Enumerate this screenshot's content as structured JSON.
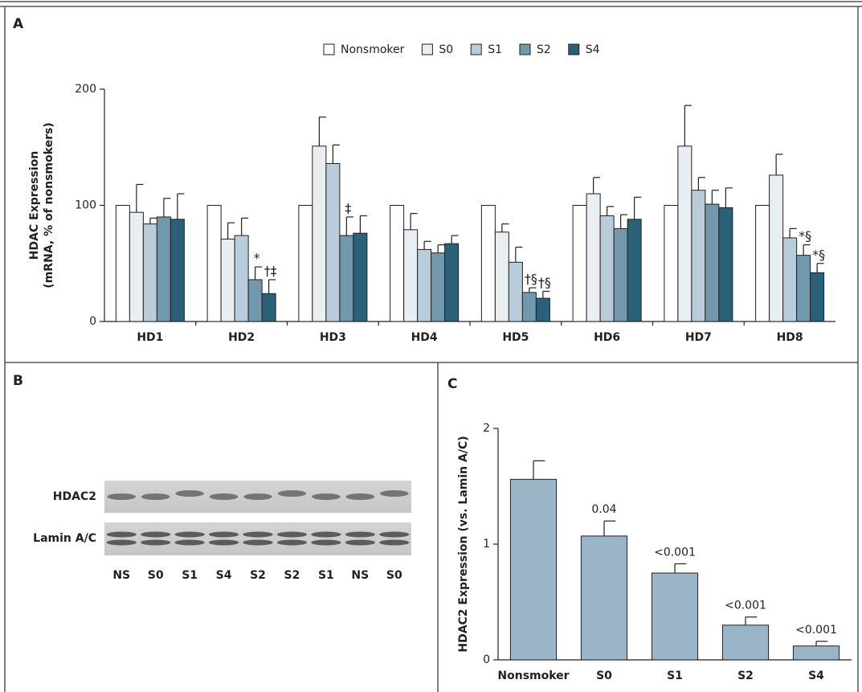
{
  "panel_labels": [
    "A",
    "B",
    "C"
  ],
  "chart_data": [
    {
      "type": "bar",
      "y_label": [
        "HDAC Expression",
        "(mRNA, % of nonsmokers)"
      ],
      "categories": [
        "HD1",
        "HD2",
        "HD3",
        "HD4",
        "HD5",
        "HD6",
        "HD7",
        "HD8"
      ],
      "series": [
        {
          "name": "Nonsmoker",
          "color": "#ffffff",
          "values": [
            100,
            100,
            100,
            100,
            100,
            100,
            100,
            100
          ],
          "errors": [
            null,
            null,
            null,
            null,
            null,
            null,
            null,
            null
          ],
          "annotations": [
            null,
            null,
            null,
            null,
            null,
            null,
            null,
            null
          ]
        },
        {
          "name": "S0",
          "color": "#e8eef2",
          "values": [
            94,
            71,
            151,
            79,
            77,
            110,
            151,
            126
          ],
          "errors": [
            24,
            14,
            25,
            14,
            7,
            14,
            35,
            18
          ],
          "annotations": [
            null,
            null,
            null,
            null,
            null,
            null,
            null,
            null
          ]
        },
        {
          "name": "S1",
          "color": "#b9ccd9",
          "values": [
            84,
            74,
            136,
            62,
            51,
            91,
            113,
            72
          ],
          "errors": [
            5,
            15,
            16,
            7,
            13,
            8,
            11,
            8
          ],
          "annotations": [
            null,
            null,
            null,
            null,
            null,
            null,
            null,
            null
          ]
        },
        {
          "name": "S2",
          "color": "#7198ad",
          "values": [
            90,
            36,
            74,
            59,
            25,
            80,
            101,
            57
          ],
          "errors": [
            16,
            11,
            16,
            7,
            4,
            12,
            12,
            9
          ],
          "annotations": [
            null,
            "*",
            "‡",
            null,
            "†§",
            null,
            null,
            "*§"
          ]
        },
        {
          "name": "S4",
          "color": "#2b6079",
          "values": [
            88,
            24,
            76,
            67,
            20,
            88,
            98,
            42
          ],
          "errors": [
            22,
            12,
            15,
            7,
            6,
            19,
            17,
            8
          ],
          "annotations": [
            null,
            "†‡",
            null,
            null,
            "†§",
            null,
            null,
            "*§"
          ]
        }
      ],
      "ylim": [
        0,
        200
      ],
      "yticks": [
        0,
        100,
        200
      ]
    },
    {
      "type": "bar",
      "y_label": "HDAC2 Expression (vs. Lamin A/C)",
      "categories": [
        "Nonsmoker",
        "S0",
        "S1",
        "S2",
        "S4"
      ],
      "values": [
        1.56,
        1.07,
        0.75,
        0.3,
        0.12
      ],
      "errors": [
        0.16,
        0.13,
        0.08,
        0.07,
        0.04
      ],
      "value_labels": [
        null,
        "0.04",
        "<0.001",
        "<0.001",
        "<0.001"
      ],
      "color": "#9ab5c8",
      "ylim": [
        0,
        2
      ],
      "yticks": [
        0,
        1,
        2
      ]
    }
  ],
  "blot": {
    "rows": [
      "HDAC2",
      "Lamin A/C"
    ],
    "lanes": [
      "NS",
      "S0",
      "S1",
      "S4",
      "S2",
      "S2",
      "S1",
      "NS",
      "S0"
    ]
  }
}
